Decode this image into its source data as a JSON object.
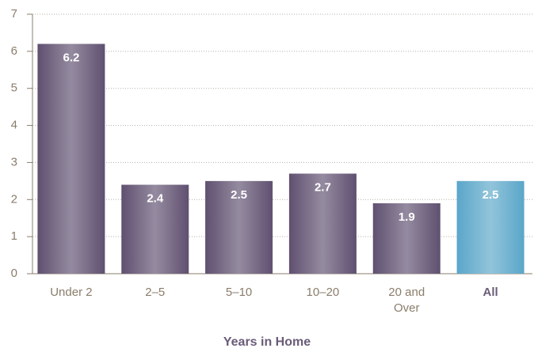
{
  "chart_data": {
    "type": "bar",
    "x_label": "Years in Home",
    "categories": [
      "Under 2",
      "2–5",
      "5–10",
      "10–20",
      "20 and Over",
      "All"
    ],
    "values": [
      6.2,
      2.4,
      2.5,
      2.7,
      1.9,
      2.5
    ],
    "colors": [
      "#5f5070",
      "#5f5070",
      "#5f5070",
      "#5f5070",
      "#5f5070",
      "#5aa6c9"
    ],
    "ylim": [
      0,
      7
    ],
    "yticks": [
      0,
      1,
      2,
      3,
      4,
      5,
      6,
      7
    ],
    "grid": true
  }
}
